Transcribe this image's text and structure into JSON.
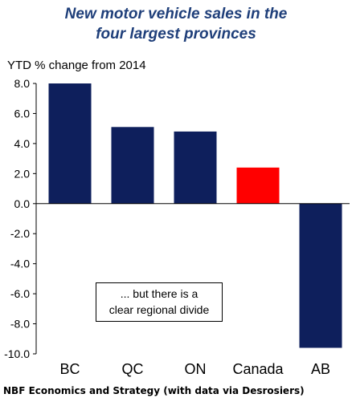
{
  "title_line1": "New motor vehicle sales in the",
  "title_line2": "four largest provinces",
  "source": "NBF Economics and Strategy (with data via Desrosiers)",
  "annotation": {
    "line1": "... but there is a",
    "line2": "clear regional divide"
  },
  "colors": {
    "province": "#0e1f5c",
    "canada": "#ff0000",
    "title": "#1f3f7a"
  },
  "chart_data": {
    "type": "bar",
    "title": "New motor vehicle sales in the four largest provinces",
    "ylabel": "YTD % change from 2014",
    "xlabel": "",
    "categories": [
      "BC",
      "QC",
      "ON",
      "Canada",
      "AB"
    ],
    "values": [
      8.0,
      5.1,
      4.8,
      2.4,
      -9.6
    ],
    "ylim": [
      -10.0,
      8.0
    ],
    "yticks": [
      "8.0",
      "6.0",
      "4.0",
      "2.0",
      "0.0",
      "-2.0",
      "-4.0",
      "-6.0",
      "-8.0",
      "-10.0"
    ],
    "grid": false,
    "legend": "none"
  }
}
